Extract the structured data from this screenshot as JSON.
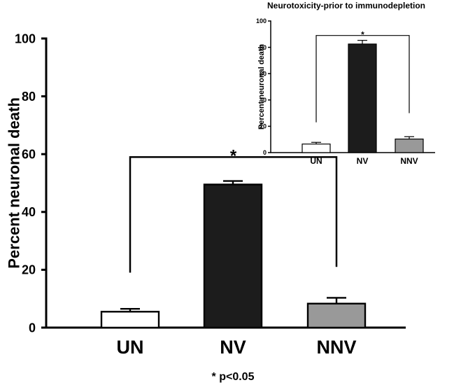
{
  "chart_data": [
    {
      "id": "main",
      "type": "bar",
      "title": "",
      "xlabel": "",
      "ylabel": "Percent neuronal death",
      "categories": [
        "UN",
        "NV",
        "NNV"
      ],
      "values": [
        5.5,
        49.5,
        8.3
      ],
      "errors": [
        1.0,
        1.2,
        2.0
      ],
      "colors": [
        "#ffffff",
        "#1c1c1c",
        "#999999"
      ],
      "ylim": [
        0,
        100
      ],
      "yticks": [
        0,
        20,
        40,
        60,
        80,
        100
      ],
      "significance": {
        "label": "*",
        "from": "UN",
        "to": "NNV",
        "level": 59,
        "left_leg_bottom": 19,
        "right_leg_bottom": 21
      },
      "footnote": "* p<0.05"
    },
    {
      "id": "inset",
      "type": "bar",
      "title": "Neurotoxicity-prior to immunodepletion",
      "xlabel": "",
      "ylabel": "Percent neuronal death",
      "categories": [
        "UN",
        "NV",
        "NNV"
      ],
      "values": [
        6.5,
        82.5,
        10.3
      ],
      "errors": [
        1.3,
        2.8,
        1.8
      ],
      "colors": [
        "#ffffff",
        "#1c1c1c",
        "#999999"
      ],
      "ylim": [
        0,
        100
      ],
      "yticks": [
        0,
        20,
        40,
        60,
        80,
        100
      ],
      "significance": {
        "label": "*",
        "from": "UN",
        "to": "NNV",
        "level": 89,
        "left_leg_bottom": 23,
        "right_leg_bottom": 30
      }
    }
  ]
}
